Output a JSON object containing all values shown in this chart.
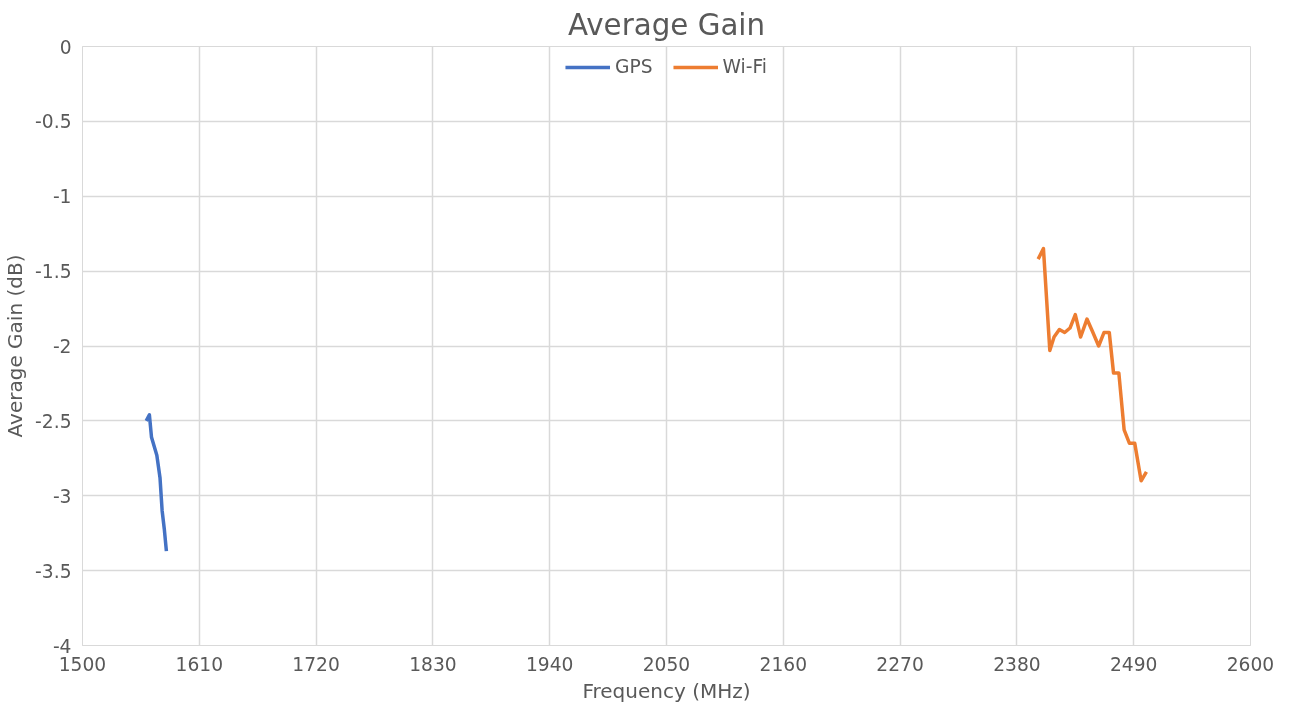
{
  "chart_data": {
    "type": "line",
    "title": "Average Gain",
    "xlabel": "Frequency (MHz)",
    "ylabel": "Average Gain (dB)",
    "xlim": [
      1500,
      2600
    ],
    "xticks": [
      1500,
      1610,
      1720,
      1830,
      1940,
      2050,
      2160,
      2270,
      2380,
      2490,
      2600
    ],
    "ylim": [
      -4,
      0
    ],
    "yticks": [
      0,
      -0.5,
      -1,
      -1.5,
      -2,
      -2.5,
      -3,
      -3.5,
      -4
    ],
    "grid": true,
    "legend": "top",
    "marker": "none",
    "line_style": "solid",
    "series": [
      {
        "name": "GPS",
        "color": "#4472c4",
        "x": [
          1560,
          1563,
          1565,
          1570,
          1573,
          1575,
          1577,
          1579
        ],
        "values": [
          -2.5,
          -2.46,
          -2.61,
          -2.73,
          -2.88,
          -3.1,
          -3.22,
          -3.37
        ]
      },
      {
        "name": "Wi-Fi",
        "color": "#ed7d31",
        "x": [
          2400,
          2405,
          2411,
          2415,
          2420,
          2425,
          2430,
          2435,
          2440,
          2446,
          2451,
          2457,
          2462,
          2467,
          2471,
          2476,
          2481,
          2486,
          2491,
          2497,
          2502
        ],
        "values": [
          -1.42,
          -1.35,
          -2.03,
          -1.94,
          -1.89,
          -1.91,
          -1.88,
          -1.79,
          -1.94,
          -1.82,
          -1.9,
          -2.0,
          -1.91,
          -1.91,
          -2.18,
          -2.18,
          -2.56,
          -2.65,
          -2.65,
          -2.9,
          -2.84
        ]
      }
    ]
  }
}
